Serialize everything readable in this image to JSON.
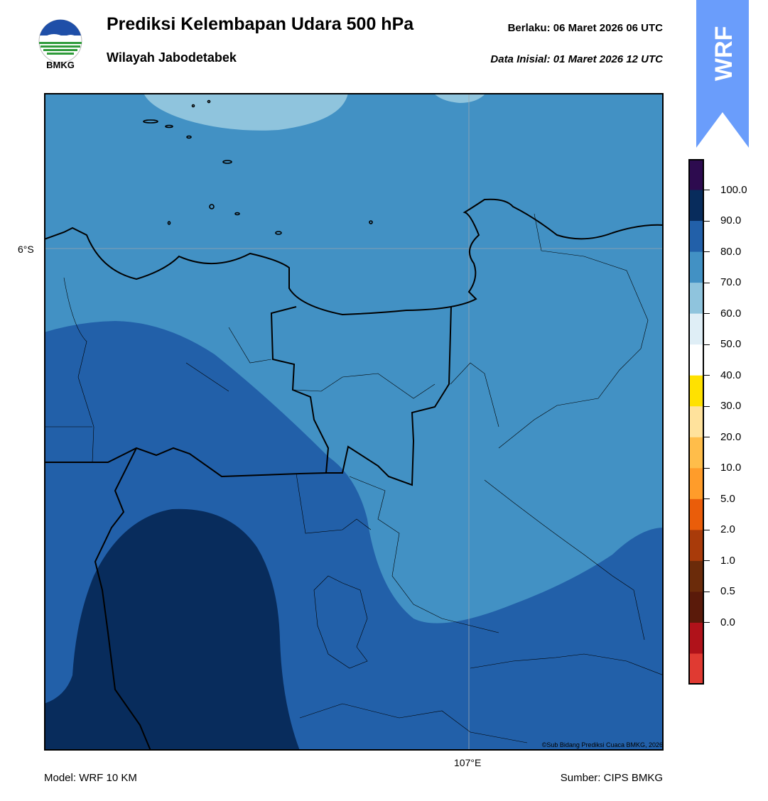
{
  "header": {
    "title": "Prediksi Kelembapan Udara 500 hPa",
    "subtitle": "Wilayah Jabodetabek",
    "valid_label": "Berlaku:  06 Maret 2026 06 UTC",
    "init_label": "Data Inisial:  01 Maret 2026 12 UTC"
  },
  "logo": {
    "text": "BMKG"
  },
  "badge": {
    "text": "WRF",
    "color": "#6a9dfb"
  },
  "map": {
    "lat_label": "6°S",
    "lon_label": "107°E",
    "copyright": "©Sub Bidang Prediksi Cuaca BMKG, 2026"
  },
  "colorbar": {
    "labels": [
      "100.0",
      "90.0",
      "80.0",
      "70.0",
      "60.0",
      "50.0",
      "40.0",
      "30.0",
      "20.0",
      "10.0",
      "5.0",
      "2.0",
      "1.0",
      "0.5",
      "0.0"
    ],
    "colors_top_to_bottom": [
      "#2d0b4f",
      "#082c5c",
      "#2260a9",
      "#4291c4",
      "#8fc4dd",
      "#dfeef6",
      "#ffffff",
      "#ffe100",
      "#ffe29c",
      "#ffbd4a",
      "#ff9c2a",
      "#ea5d0a",
      "#a93b0a",
      "#6b2b0a",
      "#5a1a0a",
      "#b0121a",
      "#e03a32"
    ]
  },
  "footer": {
    "model": "Model: WRF 10 KM",
    "source": "Sumber: CIPS BMKG"
  }
}
